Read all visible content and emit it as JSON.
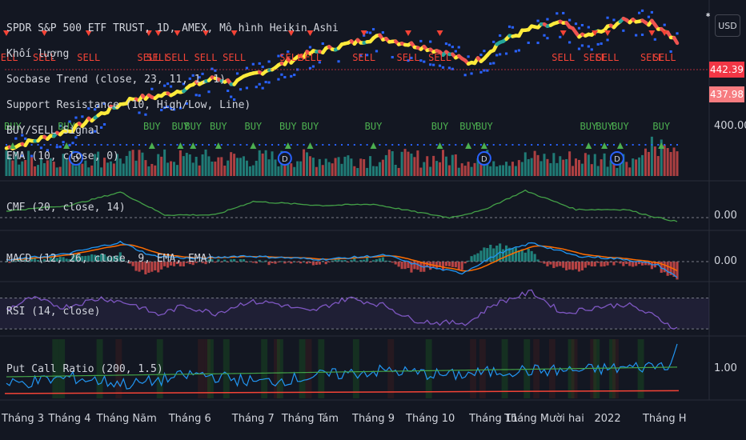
{
  "header": {
    "title": "SPDR S&P 500 ETF TRUST, 1D, AMEX, Mô hình Heikin Ashi",
    "currency_button": "USD"
  },
  "indicators": {
    "volume": "Khối lượng",
    "socbase": "Socbase Trend (close, 23, 11, 1, 1)",
    "support_resistance": "Support Resistance (10, High/Low, Line)",
    "buy_sell": "BUY/SELL Signal",
    "ema": "EMA (10, close, 0)",
    "cmf": "CMF (20, close, 14)",
    "macd": "MACD (12, 26, close, 9, EMA, EMA)",
    "rsi": "RSI (14, close)",
    "pcr": "Put Call Ratio (200, 1.5)"
  },
  "price_axis": {
    "tick_400": "400.00",
    "tag_last": "442.39",
    "tag_prev": "437.98",
    "cmf_zero": "0.00",
    "macd_zero": "0.00",
    "pcr_one": "1.00"
  },
  "x_axis": {
    "labels": [
      "Tháng 3",
      "Tháng 4",
      "Tháng Năm",
      "Tháng 6",
      "Tháng 7",
      "Tháng Tám",
      "Tháng 9",
      "Tháng 10",
      "Tháng 11",
      "Tháng Mười hai",
      "2022",
      "Tháng H"
    ]
  },
  "signals": {
    "sell": [
      {
        "label": "SELL",
        "i": 0
      },
      {
        "label": "SELL",
        "i": 12
      },
      {
        "label": "SELL",
        "i": 26
      },
      {
        "label": "SELL",
        "i": 45
      },
      {
        "label": "SELL",
        "i": 48
      },
      {
        "label": "SELL",
        "i": 54
      },
      {
        "label": "SELL",
        "i": 63
      },
      {
        "label": "SELL",
        "i": 72
      },
      {
        "label": "SELL",
        "i": 90
      },
      {
        "label": "SELL",
        "i": 96
      },
      {
        "label": "SELL",
        "i": 113
      },
      {
        "label": "SELL",
        "i": 127
      },
      {
        "label": "SELL",
        "i": 137
      },
      {
        "label": "SELL",
        "i": 176
      },
      {
        "label": "SELL",
        "i": 186
      },
      {
        "label": "SELL",
        "i": 190
      },
      {
        "label": "SELL",
        "i": 204
      },
      {
        "label": "SELL",
        "i": 208
      }
    ],
    "buy": [
      {
        "label": "BUY",
        "i": 2
      },
      {
        "label": "BUY",
        "i": 19
      },
      {
        "label": "BUY",
        "i": 46
      },
      {
        "label": "BUY",
        "i": 55
      },
      {
        "label": "BUY",
        "i": 59
      },
      {
        "label": "BUY",
        "i": 67
      },
      {
        "label": "BUY",
        "i": 78
      },
      {
        "label": "BUY",
        "i": 89
      },
      {
        "label": "BUY",
        "i": 96
      },
      {
        "label": "BUY",
        "i": 116
      },
      {
        "label": "BUY",
        "i": 137
      },
      {
        "label": "BUY",
        "i": 146
      },
      {
        "label": "BUY",
        "i": 151
      },
      {
        "label": "BUY",
        "i": 184
      },
      {
        "label": "BUY",
        "i": 189
      },
      {
        "label": "BUY",
        "i": 194
      },
      {
        "label": "BUY",
        "i": 207
      }
    ],
    "dividend_marks": [
      {
        "label": "D",
        "i": 22
      },
      {
        "label": "D",
        "i": 88
      },
      {
        "label": "D",
        "i": 151
      },
      {
        "label": "D",
        "i": 193
      }
    ]
  },
  "chart_data": {
    "type": "line",
    "symbol": "SPY",
    "x_labels": [
      "Tháng 3",
      "Tháng 4",
      "Tháng Năm",
      "Tháng 6",
      "Tháng 7",
      "Tháng Tám",
      "Tháng 9",
      "Tháng 10",
      "Tháng 11",
      "Tháng Mười hai",
      "2022",
      "Tháng H"
    ],
    "last_price": 442.39,
    "prev_price": 437.98,
    "price_ylim": [
      377,
      462
    ],
    "price_tick": 400.0,
    "price_anchors": [
      {
        "i": 0,
        "v": 382
      },
      {
        "i": 10,
        "v": 387
      },
      {
        "i": 22,
        "v": 394
      },
      {
        "i": 32,
        "v": 404
      },
      {
        "i": 40,
        "v": 411
      },
      {
        "i": 47,
        "v": 412
      },
      {
        "i": 52,
        "v": 414
      },
      {
        "i": 58,
        "v": 418
      },
      {
        "i": 66,
        "v": 423
      },
      {
        "i": 72,
        "v": 420
      },
      {
        "i": 78,
        "v": 425
      },
      {
        "i": 86,
        "v": 430
      },
      {
        "i": 93,
        "v": 436
      },
      {
        "i": 100,
        "v": 439
      },
      {
        "i": 108,
        "v": 443
      },
      {
        "i": 118,
        "v": 447
      },
      {
        "i": 124,
        "v": 444
      },
      {
        "i": 132,
        "v": 441
      },
      {
        "i": 140,
        "v": 437
      },
      {
        "i": 146,
        "v": 432
      },
      {
        "i": 150,
        "v": 434
      },
      {
        "i": 156,
        "v": 444
      },
      {
        "i": 166,
        "v": 452
      },
      {
        "i": 176,
        "v": 455
      },
      {
        "i": 182,
        "v": 447
      },
      {
        "i": 188,
        "v": 450
      },
      {
        "i": 194,
        "v": 456
      },
      {
        "i": 200,
        "v": 457
      },
      {
        "i": 204,
        "v": 455
      },
      {
        "i": 208,
        "v": 451
      },
      {
        "i": 212,
        "v": 444
      }
    ],
    "cmf_anchors": [
      {
        "i": 0,
        "v": 0.05
      },
      {
        "i": 20,
        "v": 0.09
      },
      {
        "i": 36,
        "v": 0.19
      },
      {
        "i": 50,
        "v": 0.02
      },
      {
        "i": 66,
        "v": 0.02
      },
      {
        "i": 78,
        "v": 0.12
      },
      {
        "i": 100,
        "v": 0.09
      },
      {
        "i": 116,
        "v": 0.1
      },
      {
        "i": 130,
        "v": 0.04
      },
      {
        "i": 140,
        "v": 0.0
      },
      {
        "i": 150,
        "v": 0.05
      },
      {
        "i": 164,
        "v": 0.2
      },
      {
        "i": 180,
        "v": 0.06
      },
      {
        "i": 196,
        "v": 0.06
      },
      {
        "i": 204,
        "v": 0.01
      },
      {
        "i": 212,
        "v": -0.03
      }
    ],
    "macd_anchors": [
      {
        "i": 0,
        "v": 0.2
      },
      {
        "i": 18,
        "v": 1.0
      },
      {
        "i": 36,
        "v": 2.7
      },
      {
        "i": 46,
        "v": 0.8
      },
      {
        "i": 60,
        "v": 0.4
      },
      {
        "i": 74,
        "v": 0.8
      },
      {
        "i": 100,
        "v": 0.3
      },
      {
        "i": 120,
        "v": 0.9
      },
      {
        "i": 130,
        "v": -0.5
      },
      {
        "i": 144,
        "v": -1.6
      },
      {
        "i": 156,
        "v": 1.2
      },
      {
        "i": 166,
        "v": 2.6
      },
      {
        "i": 180,
        "v": 0.8
      },
      {
        "i": 196,
        "v": 0.3
      },
      {
        "i": 206,
        "v": -0.5
      },
      {
        "i": 212,
        "v": -2.2
      }
    ],
    "rsi_anchors": [
      {
        "i": 0,
        "v": 55
      },
      {
        "i": 8,
        "v": 70
      },
      {
        "i": 18,
        "v": 58
      },
      {
        "i": 30,
        "v": 70
      },
      {
        "i": 40,
        "v": 62
      },
      {
        "i": 48,
        "v": 48
      },
      {
        "i": 56,
        "v": 60
      },
      {
        "i": 66,
        "v": 50
      },
      {
        "i": 76,
        "v": 65
      },
      {
        "i": 84,
        "v": 64
      },
      {
        "i": 96,
        "v": 52
      },
      {
        "i": 108,
        "v": 70
      },
      {
        "i": 120,
        "v": 60
      },
      {
        "i": 128,
        "v": 42
      },
      {
        "i": 136,
        "v": 38
      },
      {
        "i": 146,
        "v": 38
      },
      {
        "i": 154,
        "v": 62
      },
      {
        "i": 166,
        "v": 78
      },
      {
        "i": 176,
        "v": 50
      },
      {
        "i": 186,
        "v": 58
      },
      {
        "i": 196,
        "v": 62
      },
      {
        "i": 204,
        "v": 48
      },
      {
        "i": 212,
        "v": 30
      }
    ],
    "rsi_band": [
      30,
      70
    ],
    "pcr_anchors": [
      {
        "i": 0,
        "v": 0.75
      },
      {
        "i": 20,
        "v": 0.85
      },
      {
        "i": 40,
        "v": 0.75
      },
      {
        "i": 60,
        "v": 0.9
      },
      {
        "i": 80,
        "v": 0.78
      },
      {
        "i": 100,
        "v": 0.88
      },
      {
        "i": 120,
        "v": 0.95
      },
      {
        "i": 140,
        "v": 0.88
      },
      {
        "i": 160,
        "v": 0.95
      },
      {
        "i": 180,
        "v": 0.95
      },
      {
        "i": 200,
        "v": 1.0
      },
      {
        "i": 210,
        "v": 1.05
      },
      {
        "i": 212,
        "v": 1.3
      }
    ],
    "pcr_ylim": [
      0.55,
      1.4
    ],
    "pcr_ref": 1.0,
    "n_bars": 213
  },
  "colors": {
    "background": "#131722",
    "grid": "#1e222d",
    "trend_up": "#ffeb3b",
    "trend_down": "#ef5350",
    "trend_mid": "#26a69a",
    "support": "#2962ff",
    "vol_up": "#26a69a",
    "vol_down": "#ef5350",
    "cmf": "#43a047",
    "macd": "#2196f3",
    "signal": "#ff6d00",
    "rsi": "#7e57c2",
    "pcr": "#2196f3",
    "pcr_ma": "#43a047",
    "pcr_base": "#f44336",
    "buy": "#4caf50",
    "sell": "#f44336",
    "tag_last": "#f23645",
    "tag_prev": "#f77c80"
  }
}
